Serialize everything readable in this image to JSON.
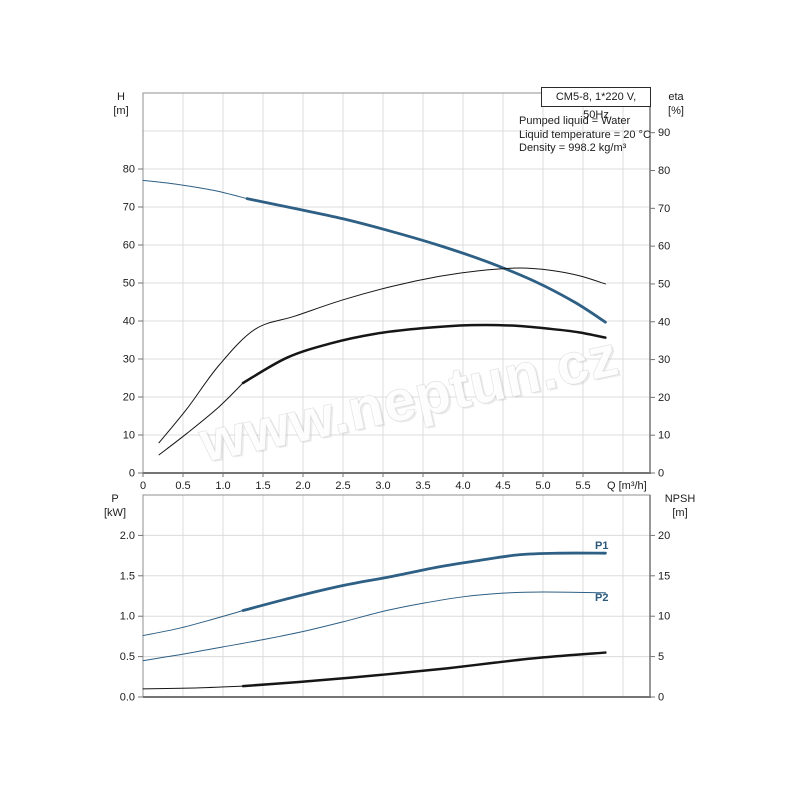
{
  "header": {
    "model": "CM5-8, 1*220 V, 50Hz",
    "conditions": [
      "Pumped liquid = Water",
      "Liquid temperature = 20 °C",
      "Density = 998.2 kg/m³"
    ]
  },
  "watermark": "www.neptun.cz",
  "style": {
    "grid_color": "#dcdcdc",
    "axis_color": "#8f8f8f",
    "axis_dark_color": "#757575",
    "tick_text_color": "#1c1c1c",
    "curve_blue": "#2e5f84",
    "curve_black": "#161616",
    "label_blue": "#2b5a7d"
  },
  "chart_data": [
    {
      "id": "top",
      "type": "line",
      "x_axis": {
        "title": "Q [m³/h]",
        "min": 0,
        "max": 6.3375,
        "ticks": [
          {
            "v": 0,
            "l": "0"
          },
          {
            "v": 0.5,
            "l": "0.5"
          },
          {
            "v": 1,
            "l": "1.0"
          },
          {
            "v": 1.5,
            "l": "1.5"
          },
          {
            "v": 2,
            "l": "2.0"
          },
          {
            "v": 2.5,
            "l": "2.5"
          },
          {
            "v": 3,
            "l": "3.0"
          },
          {
            "v": 3.5,
            "l": "3.5"
          },
          {
            "v": 4,
            "l": "4.0"
          },
          {
            "v": 4.5,
            "l": "4.5"
          },
          {
            "v": 5,
            "l": "5.0"
          },
          {
            "v": 5.5,
            "l": "5.5"
          }
        ],
        "v_grid": [
          0.5,
          1,
          1.5,
          2,
          2.5,
          3,
          3.5,
          4,
          4.5,
          5,
          5.5,
          6
        ]
      },
      "left_axis": {
        "name": "H",
        "unit": "[m]",
        "min": 0,
        "max": 100,
        "ticks": [
          {
            "v": 0,
            "l": "0"
          },
          {
            "v": 10,
            "l": "10"
          },
          {
            "v": 20,
            "l": "20"
          },
          {
            "v": 30,
            "l": "30"
          },
          {
            "v": 40,
            "l": "40"
          },
          {
            "v": 50,
            "l": "50"
          },
          {
            "v": 60,
            "l": "60"
          },
          {
            "v": 70,
            "l": "70"
          },
          {
            "v": 80,
            "l": "80"
          }
        ],
        "h_grid": [
          10,
          20,
          30,
          40,
          50,
          60,
          70,
          80,
          90
        ]
      },
      "right_axis": {
        "name": "eta",
        "unit": "[%]",
        "min": 0,
        "max": 100.5,
        "ticks": [
          {
            "v": 0,
            "l": "0"
          },
          {
            "v": 10,
            "l": "10"
          },
          {
            "v": 20,
            "l": "20"
          },
          {
            "v": 30,
            "l": "30"
          },
          {
            "v": 40,
            "l": "40"
          },
          {
            "v": 50,
            "l": "50"
          },
          {
            "v": 60,
            "l": "60"
          },
          {
            "v": 70,
            "l": "70"
          },
          {
            "v": 80,
            "l": "80"
          },
          {
            "v": 90,
            "l": "90"
          }
        ]
      },
      "series": [
        {
          "id": "qh-curve",
          "label": "",
          "axis": "left",
          "color": "#2e5f84",
          "segments": [
            {
              "w": 1,
              "pts": [
                [
                  0,
                  77
                ],
                [
                  0.45,
                  75.9
                ],
                [
                  0.9,
                  74.3
                ],
                [
                  1.3,
                  72.2
                ]
              ]
            },
            {
              "w": 2.8,
              "pts": [
                [
                  1.3,
                  72.2
                ],
                [
                  1.9,
                  69.6
                ],
                [
                  2.5,
                  66.9
                ],
                [
                  3.1,
                  63.6
                ],
                [
                  3.7,
                  59.9
                ],
                [
                  4.3,
                  55.6
                ],
                [
                  4.9,
                  50.4
                ],
                [
                  5.4,
                  44.9
                ],
                [
                  5.78,
                  39.7
                ]
              ]
            }
          ]
        },
        {
          "id": "eta-pump-curve",
          "label": "",
          "axis": "right",
          "color": "#161616",
          "segments": [
            {
              "w": 1,
              "pts": [
                [
                  0.2,
                  8
                ],
                [
                  0.55,
                  17
                ],
                [
                  0.95,
                  28.5
                ],
                [
                  1.4,
                  38
                ],
                [
                  1.9,
                  41.5
                ],
                [
                  2.5,
                  45.8
                ],
                [
                  3.1,
                  49.3
                ],
                [
                  3.7,
                  52
                ],
                [
                  4.2,
                  53.5
                ],
                [
                  4.7,
                  54.2
                ],
                [
                  5.1,
                  53.6
                ],
                [
                  5.45,
                  52.2
                ],
                [
                  5.78,
                  50
                ]
              ]
            }
          ]
        },
        {
          "id": "eta-pump-motor-curve",
          "label": "",
          "axis": "right",
          "color": "#161616",
          "segments": [
            {
              "w": 1,
              "pts": [
                [
                  0.2,
                  4.8
                ],
                [
                  0.55,
                  10.5
                ],
                [
                  0.95,
                  17.5
                ],
                [
                  1.25,
                  23.8
                ]
              ]
            },
            {
              "w": 2.5,
              "pts": [
                [
                  1.25,
                  23.8
                ],
                [
                  1.8,
                  30.5
                ],
                [
                  2.35,
                  34.3
                ],
                [
                  2.9,
                  36.8
                ],
                [
                  3.5,
                  38.3
                ],
                [
                  4.1,
                  39.1
                ],
                [
                  4.6,
                  39
                ],
                [
                  5.1,
                  38.1
                ],
                [
                  5.45,
                  37.2
                ],
                [
                  5.78,
                  35.8
                ]
              ]
            }
          ]
        }
      ]
    },
    {
      "id": "bottom",
      "type": "line",
      "x_axis": {
        "title": "",
        "min": 0,
        "max": 6.3375,
        "ticks": [],
        "v_grid": [
          0.5,
          1,
          1.5,
          2,
          2.5,
          3,
          3.5,
          4,
          4.5,
          5,
          5.5,
          6
        ]
      },
      "left_axis": {
        "name": "P",
        "unit": "[kW]",
        "min": 0,
        "max": 2.5,
        "ticks": [
          {
            "v": 0,
            "l": "0.0"
          },
          {
            "v": 0.5,
            "l": "0.5"
          },
          {
            "v": 1,
            "l": "1.0"
          },
          {
            "v": 1.5,
            "l": "1.5"
          },
          {
            "v": 2,
            "l": "2.0"
          }
        ],
        "h_grid": [
          0.5,
          1,
          1.5,
          2
        ]
      },
      "right_axis": {
        "name": "NPSH",
        "unit": "[m]",
        "min": 0,
        "max": 25,
        "ticks": [
          {
            "v": 0,
            "l": "0"
          },
          {
            "v": 5,
            "l": "5"
          },
          {
            "v": 10,
            "l": "10"
          },
          {
            "v": 15,
            "l": "15"
          },
          {
            "v": 20,
            "l": "20"
          }
        ]
      },
      "series": [
        {
          "id": "p1-curve",
          "label": "P1",
          "axis": "left",
          "color": "#2e5f84",
          "segments": [
            {
              "w": 1,
              "pts": [
                [
                  0,
                  0.76
                ],
                [
                  0.45,
                  0.85
                ],
                [
                  0.9,
                  0.97
                ],
                [
                  1.25,
                  1.07
                ]
              ]
            },
            {
              "w": 2.8,
              "pts": [
                [
                  1.25,
                  1.07
                ],
                [
                  1.9,
                  1.24
                ],
                [
                  2.5,
                  1.38
                ],
                [
                  3.1,
                  1.49
                ],
                [
                  3.7,
                  1.61
                ],
                [
                  4.2,
                  1.69
                ],
                [
                  4.7,
                  1.76
                ],
                [
                  5.2,
                  1.78
                ],
                [
                  5.78,
                  1.78
                ]
              ]
            }
          ]
        },
        {
          "id": "p2-curve",
          "label": "P2",
          "axis": "left",
          "color": "#2e5f84",
          "segments": [
            {
              "w": 1,
              "pts": [
                [
                  0,
                  0.45
                ],
                [
                  0.5,
                  0.53
                ],
                [
                  1,
                  0.62
                ],
                [
                  1.5,
                  0.71
                ],
                [
                  2,
                  0.81
                ],
                [
                  2.5,
                  0.93
                ],
                [
                  3,
                  1.06
                ],
                [
                  3.5,
                  1.16
                ],
                [
                  4,
                  1.24
                ],
                [
                  4.5,
                  1.285
                ],
                [
                  5,
                  1.3
                ],
                [
                  5.78,
                  1.29
                ]
              ]
            }
          ]
        },
        {
          "id": "npsh-curve",
          "label": "",
          "axis": "right",
          "color": "#161616",
          "segments": [
            {
              "w": 1,
              "pts": [
                [
                  0,
                  1
                ],
                [
                  0.65,
                  1.12
                ],
                [
                  1.25,
                  1.35
                ]
              ]
            },
            {
              "w": 2.5,
              "pts": [
                [
                  1.25,
                  1.35
                ],
                [
                  1.95,
                  1.85
                ],
                [
                  2.6,
                  2.4
                ],
                [
                  3.2,
                  2.95
                ],
                [
                  3.8,
                  3.55
                ],
                [
                  4.4,
                  4.25
                ],
                [
                  5,
                  4.9
                ],
                [
                  5.78,
                  5.5
                ]
              ]
            }
          ]
        }
      ]
    }
  ]
}
